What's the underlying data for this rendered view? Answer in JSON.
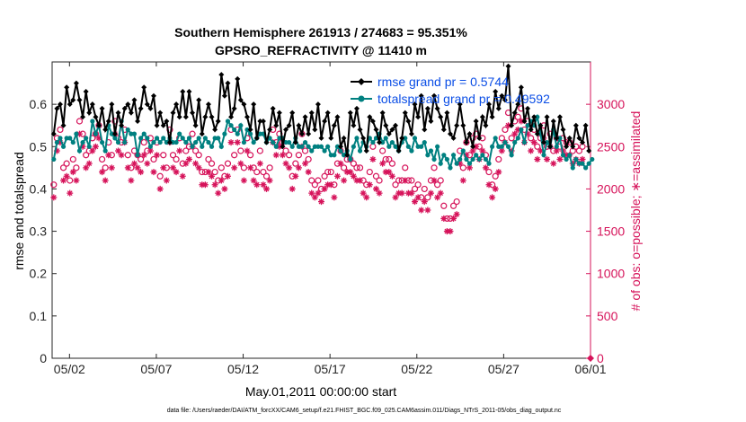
{
  "chart_data": {
    "type": "line",
    "title_line1": "Southern Hemisphere 261913 / 274683 = 95.351%",
    "title_line2": "GPSRO_REFRACTIVITY @ 11410 m",
    "xlabel": "May.01,2011 00:00:00 start",
    "ylabel_left": "rmse and totalspread",
    "ylabel_right": "# of obs: o=possible; ∗=assimilated",
    "footer": "data file: /Users/raeder/DAI/ATM_forcXX/CAM6_setup/f.e21.FHIST_BGC.f09_025.CAM6assim.011/Diags_NTrS_2011-05/obs_diag_output.nc",
    "x_tick_labels": [
      "05/02",
      "05/07",
      "05/12",
      "05/17",
      "05/22",
      "05/27",
      "06/01"
    ],
    "x_tick_days": [
      1,
      6,
      11,
      16,
      21,
      26,
      31
    ],
    "xlim_days": [
      0,
      31
    ],
    "ylim_left": [
      0,
      0.7
    ],
    "yticks_left": [
      "0",
      "0.1",
      "0.2",
      "0.3",
      "0.4",
      "0.5",
      "0.6"
    ],
    "ylim_right": [
      0,
      3500
    ],
    "yticks_right": [
      "0",
      "500",
      "1000",
      "1500",
      "2000",
      "2500",
      "3000"
    ],
    "colors": {
      "rmse": "#000000",
      "spread": "#008080",
      "obs": "#d6135a",
      "legend_text": "#0b4ee6"
    },
    "legend": [
      {
        "label": "rmse grand pr = 0.5744",
        "series": "rmse"
      },
      {
        "label": "totalspread grand pr = 0.49592",
        "series": "spread"
      }
    ],
    "series": [
      {
        "name": "rmse",
        "values": [
          0.53,
          0.59,
          0.6,
          0.55,
          0.64,
          0.6,
          0.61,
          0.65,
          0.61,
          0.57,
          0.63,
          0.58,
          0.6,
          0.57,
          0.55,
          0.59,
          0.54,
          0.56,
          0.6,
          0.53,
          0.58,
          0.55,
          0.59,
          0.6,
          0.58,
          0.61,
          0.56,
          0.59,
          0.64,
          0.6,
          0.59,
          0.62,
          0.55,
          0.58,
          0.55,
          0.56,
          0.51,
          0.58,
          0.6,
          0.57,
          0.63,
          0.57,
          0.63,
          0.58,
          0.55,
          0.61,
          0.53,
          0.57,
          0.6,
          0.57,
          0.54,
          0.56,
          0.67,
          0.62,
          0.65,
          0.57,
          0.59,
          0.66,
          0.61,
          0.6,
          0.57,
          0.54,
          0.6,
          0.52,
          0.56,
          0.56,
          0.51,
          0.54,
          0.59,
          0.55,
          0.58,
          0.5,
          0.54,
          0.55,
          0.58,
          0.51,
          0.55,
          0.53,
          0.57,
          0.53,
          0.58,
          0.54,
          0.6,
          0.52,
          0.56,
          0.58,
          0.52,
          0.55,
          0.57,
          0.5,
          0.52,
          0.48,
          0.58,
          0.55,
          0.59,
          0.54,
          0.52,
          0.49,
          0.57,
          0.56,
          0.54,
          0.51,
          0.58,
          0.55,
          0.53,
          0.54,
          0.55,
          0.49,
          0.52,
          0.58,
          0.56,
          0.53,
          0.6,
          0.57,
          0.62,
          0.54,
          0.59,
          0.56,
          0.62,
          0.59,
          0.57,
          0.54,
          0.58,
          0.53,
          0.52,
          0.55,
          0.6,
          0.55,
          0.51,
          0.53,
          0.5,
          0.56,
          0.52,
          0.57,
          0.55,
          0.6,
          0.57,
          0.63,
          0.59,
          0.62,
          0.61,
          0.69,
          0.55,
          0.58,
          0.6,
          0.64,
          0.56,
          0.59,
          0.54,
          0.57,
          0.53,
          0.55,
          0.51,
          0.57,
          0.5,
          0.56,
          0.52,
          0.57,
          0.54,
          0.5,
          0.52,
          0.5,
          0.55,
          0.52,
          0.51,
          0.55,
          0.49
        ],
        "marker": "filled-diamond"
      },
      {
        "name": "totalspread",
        "values": [
          0.47,
          0.51,
          0.52,
          0.5,
          0.52,
          0.52,
          0.51,
          0.53,
          0.49,
          0.51,
          0.52,
          0.5,
          0.56,
          0.53,
          0.55,
          0.51,
          0.49,
          0.55,
          0.53,
          0.52,
          0.51,
          0.56,
          0.51,
          0.54,
          0.53,
          0.53,
          0.48,
          0.52,
          0.53,
          0.52,
          0.5,
          0.51,
          0.52,
          0.51,
          0.52,
          0.51,
          0.52,
          0.51,
          0.51,
          0.53,
          0.52,
          0.51,
          0.52,
          0.5,
          0.51,
          0.52,
          0.5,
          0.52,
          0.51,
          0.5,
          0.52,
          0.52,
          0.5,
          0.53,
          0.56,
          0.55,
          0.54,
          0.53,
          0.55,
          0.51,
          0.54,
          0.53,
          0.51,
          0.52,
          0.53,
          0.53,
          0.51,
          0.52,
          0.51,
          0.5,
          0.52,
          0.52,
          0.51,
          0.51,
          0.5,
          0.52,
          0.5,
          0.5,
          0.51,
          0.5,
          0.49,
          0.5,
          0.5,
          0.5,
          0.49,
          0.5,
          0.48,
          0.48,
          0.5,
          0.49,
          0.48,
          0.49,
          0.47,
          0.5,
          0.52,
          0.49,
          0.51,
          0.5,
          0.52,
          0.51,
          0.52,
          0.53,
          0.51,
          0.52,
          0.5,
          0.51,
          0.5,
          0.49,
          0.51,
          0.52,
          0.5,
          0.49,
          0.52,
          0.5,
          0.5,
          0.51,
          0.48,
          0.49,
          0.47,
          0.5,
          0.46,
          0.48,
          0.47,
          0.45,
          0.48,
          0.46,
          0.47,
          0.49,
          0.47,
          0.46,
          0.47,
          0.48,
          0.47,
          0.48,
          0.47,
          0.46,
          0.5,
          0.52,
          0.5,
          0.5,
          0.51,
          0.5,
          0.48,
          0.51,
          0.52,
          0.54,
          0.51,
          0.55,
          0.56,
          0.55,
          0.57,
          0.53,
          0.48,
          0.51,
          0.5,
          0.54,
          0.5,
          0.52,
          0.48,
          0.47,
          0.48,
          0.45,
          0.47,
          0.46,
          0.46,
          0.45,
          0.46,
          0.47
        ],
        "marker": "filled-circle"
      },
      {
        "name": "obs_possible",
        "values": [
          2050,
          2600,
          2700,
          2250,
          2300,
          2100,
          2350,
          2250,
          2800,
          2650,
          2400,
          2450,
          2600,
          2650,
          2750,
          2350,
          2250,
          2550,
          2400,
          2800,
          2600,
          2550,
          2700,
          2400,
          2250,
          2450,
          2400,
          2350,
          2550,
          2450,
          2600,
          2350,
          2550,
          2150,
          2400,
          2250,
          2700,
          2400,
          2350,
          2600,
          2300,
          2450,
          2500,
          2650,
          2450,
          2400,
          2200,
          2200,
          2350,
          2300,
          2200,
          2100,
          2250,
          2150,
          2300,
          2700,
          2400,
          2700,
          2450,
          2250,
          2600,
          2400,
          2250,
          2200,
          2450,
          2200,
          2150,
          2250,
          2700,
          2550,
          2650,
          2550,
          2450,
          2400,
          2150,
          2300,
          2400,
          2650,
          2450,
          2350,
          2100,
          2050,
          2100,
          2000,
          2150,
          2200,
          2200,
          2050,
          2300,
          2450,
          2250,
          2350,
          2350,
          2300,
          2250,
          2250,
          2100,
          2050,
          2200,
          2500,
          2150,
          2100,
          2450,
          2350,
          2350,
          2300,
          2050,
          2100,
          2100,
          2250,
          2100,
          2100,
          2000,
          2050,
          1900,
          2000,
          1900,
          2100,
          2250,
          2050,
          2100,
          1800,
          1650,
          1650,
          1800,
          1850,
          2450,
          2250,
          2550,
          2400,
          2600,
          2650,
          2500,
          2600,
          2400,
          2200,
          2050,
          2150,
          2350,
          2600,
          2700,
          2900,
          2600,
          2800,
          2850,
          2950,
          2700,
          2800,
          2600,
          2700,
          2500,
          2600,
          2750,
          2500,
          2650,
          2450,
          2600,
          2500,
          2600,
          2550,
          2550,
          2450,
          2500,
          2450,
          2500
        ],
        "marker": "open-circle"
      },
      {
        "name": "obs_assimilated",
        "values": [
          1900,
          2450,
          2550,
          2100,
          2150,
          1950,
          2200,
          2100,
          2650,
          2500,
          2250,
          2300,
          2450,
          2500,
          2600,
          2200,
          2100,
          2400,
          2250,
          2650,
          2450,
          2400,
          2550,
          2250,
          2100,
          2300,
          2250,
          2200,
          2400,
          2300,
          2450,
          2200,
          2400,
          2000,
          2250,
          2100,
          2550,
          2250,
          2200,
          2450,
          2150,
          2300,
          2350,
          2500,
          2300,
          2250,
          2050,
          2050,
          2200,
          2150,
          2050,
          1950,
          2100,
          2000,
          2150,
          2550,
          2250,
          2550,
          2300,
          2100,
          2450,
          2250,
          2100,
          2050,
          2300,
          2050,
          2000,
          2100,
          2550,
          2400,
          2500,
          2400,
          2300,
          2250,
          2000,
          2150,
          2250,
          2500,
          2300,
          2200,
          1950,
          1900,
          1950,
          1850,
          2000,
          2050,
          2050,
          1900,
          2150,
          2300,
          2100,
          2200,
          2200,
          2150,
          2100,
          2100,
          1950,
          1900,
          2050,
          2350,
          2000,
          1950,
          2300,
          2200,
          2200,
          2150,
          1900,
          1950,
          1950,
          2100,
          1950,
          1950,
          1850,
          1900,
          1750,
          1850,
          1750,
          1950,
          2100,
          1900,
          1950,
          1650,
          1500,
          1500,
          1650,
          1700,
          2300,
          2100,
          2400,
          2250,
          2450,
          2500,
          2350,
          2450,
          2250,
          2050,
          1900,
          2000,
          2200,
          2450,
          2550,
          2750,
          2450,
          2650,
          2700,
          2800,
          2550,
          2650,
          2450,
          2550,
          2350,
          2450,
          2600,
          2350,
          2500,
          2300,
          2450,
          2350,
          2450,
          2400,
          2400,
          2300,
          2350,
          2300,
          2350
        ],
        "marker": "asterisk"
      }
    ]
  }
}
